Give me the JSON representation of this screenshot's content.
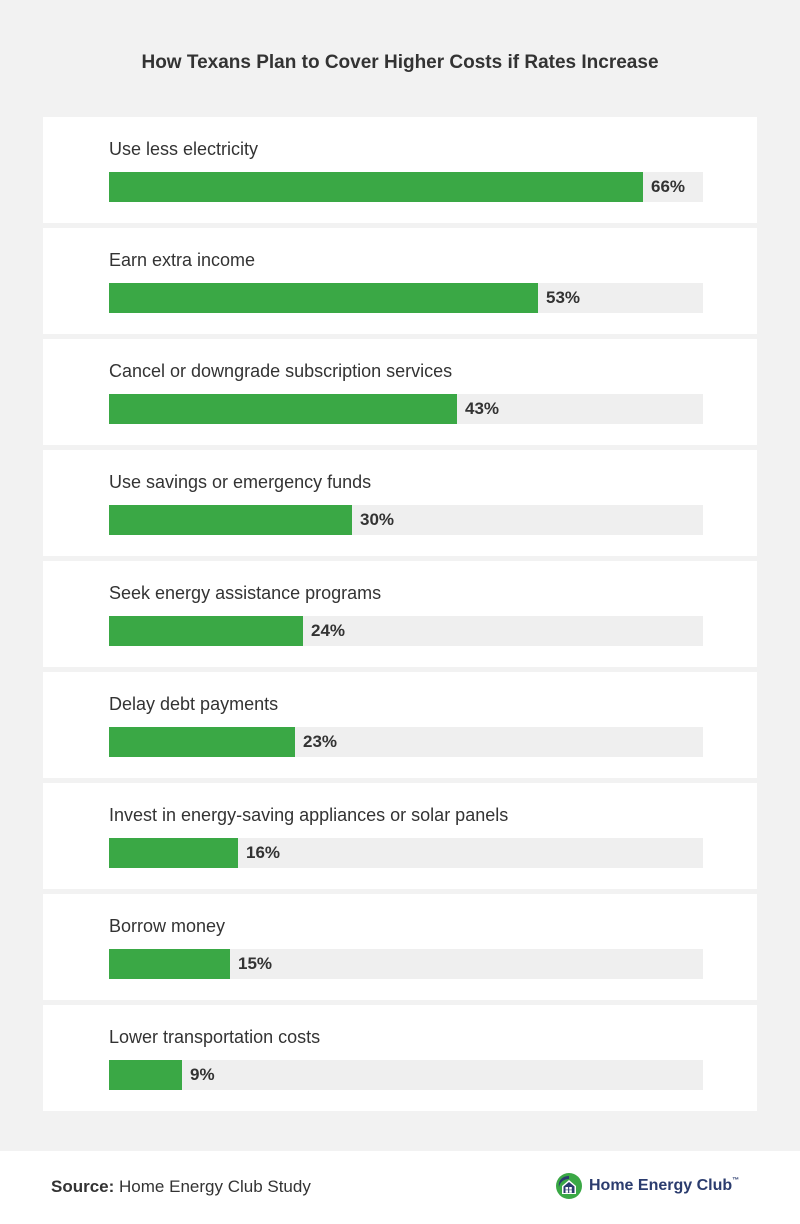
{
  "chart_data": {
    "type": "bar",
    "orientation": "horizontal",
    "title": "How Texans Plan to Cover Higher Costs if Rates Increase",
    "categories": [
      "Use less electricity",
      "Earn extra income",
      "Cancel or downgrade subscription services",
      "Use savings or emergency funds",
      "Seek energy assistance programs",
      "Delay debt payments",
      "Invest in energy-saving appliances or solar panels",
      "Borrow money",
      "Lower transportation costs"
    ],
    "values": [
      66,
      53,
      43,
      30,
      24,
      23,
      16,
      15,
      9
    ],
    "value_labels": [
      "66%",
      "53%",
      "43%",
      "30%",
      "24%",
      "23%",
      "16%",
      "15%",
      "9%"
    ],
    "xlim": [
      0,
      66
    ],
    "xlabel": "",
    "ylabel": "",
    "grid": false,
    "bar_color": "#3aa845",
    "track_color": "#efefef"
  },
  "footer": {
    "source_label": "Source:",
    "source_text": "Home Energy Club Study",
    "logo_text": "Home Energy Club",
    "logo_tm": "™",
    "logo_icon": "house-logo-icon",
    "logo_colors": [
      "#3aa845",
      "#2b3c6e"
    ]
  }
}
